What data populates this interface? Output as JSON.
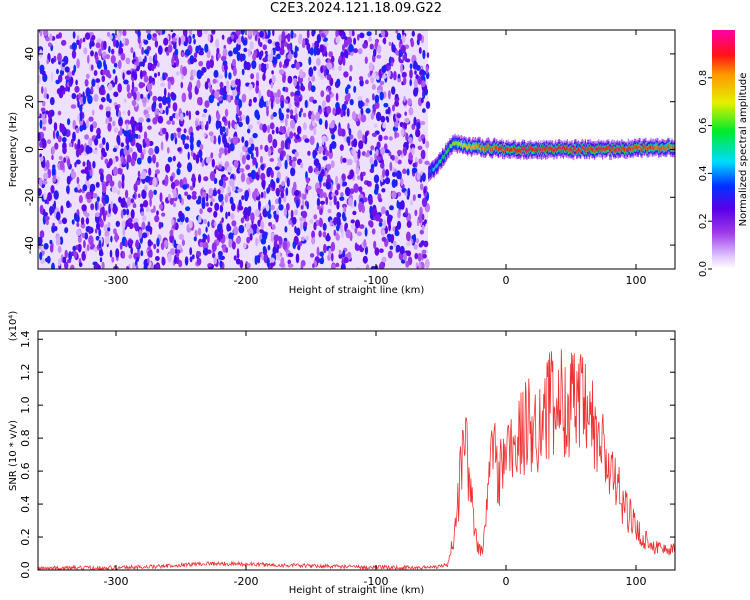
{
  "figure_title": "C2E3.2024.121.18.09.G22",
  "colorbar": {
    "label": "Normalized spectral amplitude",
    "ticks": [
      0.0,
      0.2,
      0.4,
      0.6,
      0.8
    ],
    "tick_labels": [
      "0.0",
      "0.2",
      "0.4",
      "0.6",
      "0.8"
    ],
    "range": [
      0,
      1
    ]
  },
  "chart_data": [
    {
      "id": "spectrogram",
      "type": "heatmap",
      "title": "",
      "xlabel": "Height of straight line (km)",
      "ylabel": "Frequency (Hz)",
      "xlim": [
        -360,
        130
      ],
      "ylim": [
        -50,
        50
      ],
      "xticks": [
        -300,
        -200,
        -100,
        0,
        100
      ],
      "xtick_labels": [
        "-300",
        "-200",
        "-100",
        "0",
        "100"
      ],
      "yticks": [
        -40,
        -20,
        0,
        20,
        40
      ],
      "ytick_labels": [
        "-40",
        "-20",
        "0",
        "20",
        "40"
      ],
      "noise_region": {
        "x": [
          -360,
          -60
        ],
        "amplitude_range": [
          0.05,
          0.35
        ]
      },
      "signal_trace": {
        "x": [
          -60,
          -55,
          -50,
          -45,
          -40,
          -35,
          -30,
          -25,
          -20,
          0,
          20,
          40,
          60,
          80,
          100,
          130
        ],
        "freq": [
          -10,
          -8,
          -4,
          0,
          3,
          2,
          1,
          1,
          1,
          0,
          0,
          0,
          0,
          0,
          0.5,
          1
        ],
        "core_amplitude": [
          0.35,
          0.45,
          0.55,
          0.6,
          0.65,
          0.7,
          0.75,
          0.8,
          0.85,
          0.9,
          0.92,
          0.92,
          0.9,
          0.9,
          0.88,
          0.86
        ]
      }
    },
    {
      "id": "snr",
      "type": "line",
      "title": "",
      "xlabel": "Height of straight line (km)",
      "ylabel": "SNR (10 * v/v)",
      "scale_label": "(x10⁴)",
      "xlim": [
        -360,
        130
      ],
      "ylim": [
        0,
        1.45
      ],
      "xticks": [
        -300,
        -200,
        -100,
        0,
        100
      ],
      "xtick_labels": [
        "-300",
        "-200",
        "-100",
        "0",
        "100"
      ],
      "yticks": [
        0.0,
        0.2,
        0.4,
        0.6,
        0.8,
        1.0,
        1.2,
        1.4
      ],
      "ytick_labels": [
        "0.0",
        "0.2",
        "0.4",
        "0.6",
        "0.8",
        "1.0",
        "1.2",
        "1.4"
      ],
      "series": [
        {
          "color": "#ef3030",
          "x": [
            -360,
            -300,
            -270,
            -250,
            -230,
            -200,
            -180,
            -150,
            -120,
            -100,
            -80,
            -60,
            -45,
            -40,
            -37,
            -35,
            -32,
            -28,
            -25,
            -22,
            -18,
            -15,
            -12,
            -10,
            -6,
            -3,
            0,
            5,
            10,
            15,
            20,
            25,
            30,
            35,
            40,
            45,
            50,
            55,
            60,
            65,
            70,
            75,
            80,
            85,
            90,
            95,
            100,
            105,
            110,
            115,
            120,
            130
          ],
          "y": [
            0.01,
            0.015,
            0.02,
            0.03,
            0.04,
            0.035,
            0.03,
            0.025,
            0.02,
            0.015,
            0.015,
            0.015,
            0.03,
            0.2,
            0.4,
            0.6,
            0.85,
            0.55,
            0.3,
            0.15,
            0.1,
            0.35,
            0.7,
            0.8,
            0.55,
            0.65,
            0.75,
            0.72,
            0.8,
            0.85,
            0.9,
            0.88,
            0.95,
            1.0,
            0.98,
            1.05,
            1.0,
            1.02,
            0.95,
            0.9,
            0.8,
            0.72,
            0.6,
            0.5,
            0.42,
            0.33,
            0.25,
            0.2,
            0.17,
            0.14,
            0.13,
            0.12
          ]
        }
      ]
    }
  ]
}
